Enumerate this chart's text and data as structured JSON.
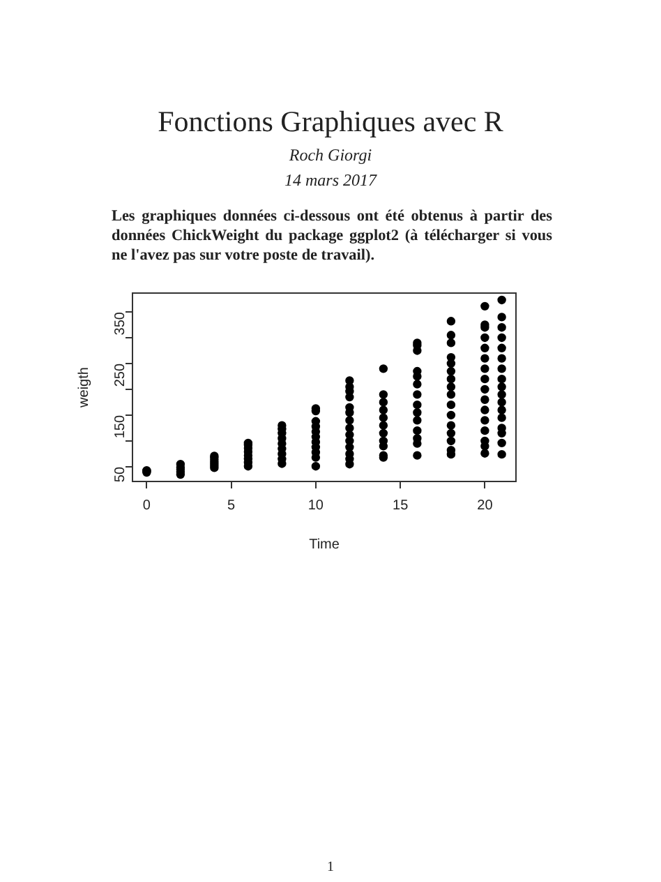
{
  "chart_data": {
    "type": "scatter",
    "title": "Fonctions Graphiques avec R",
    "subtitle": "Roch Giorgi",
    "annotations": [
      "14 mars 2017",
      "Les graphiques données ci-dessous ont été obtenus à partir des données ChickWeight du package ggplot2 (à télécharger si vous ne l'avez pas sur votre poste de travail).",
      "1"
    ],
    "xlabel": "Time",
    "ylabel": "weigth",
    "xlim": [
      -0.84,
      21.84
    ],
    "xticks": [
      0,
      5,
      10,
      15,
      20
    ],
    "ylim": [
      21.5,
      386.5
    ],
    "yticks": [
      50,
      {
        "value": 100,
        "label": null
      },
      150,
      {
        "value": 200,
        "label": null
      },
      250,
      {
        "value": 300,
        "label": null
      },
      350
    ],
    "marker": "circle",
    "grid": false,
    "legend": false,
    "series": [
      {
        "color": "#000000",
        "x": [
          0,
          0,
          0,
          0,
          2,
          2,
          2,
          2,
          2,
          4,
          4,
          4,
          4,
          4,
          4,
          4,
          6,
          6,
          6,
          6,
          6,
          6,
          6,
          6,
          8,
          8,
          8,
          8,
          8,
          8,
          8,
          8,
          8,
          10,
          10,
          10,
          10,
          10,
          10,
          10,
          10,
          10,
          10,
          10,
          12,
          12,
          12,
          12,
          12,
          12,
          12,
          12,
          12,
          12,
          12,
          12,
          12,
          12,
          14,
          14,
          14,
          14,
          14,
          14,
          14,
          14,
          14,
          14,
          14,
          16,
          16,
          16,
          16,
          16,
          16,
          16,
          16,
          16,
          16,
          16,
          16,
          16,
          16,
          18,
          18,
          18,
          18,
          18,
          18,
          18,
          18,
          18,
          18,
          18,
          18,
          18,
          18,
          18,
          18,
          20,
          20,
          20,
          20,
          20,
          20,
          20,
          20,
          20,
          20,
          20,
          20,
          20,
          20,
          20,
          20,
          21,
          21,
          21,
          21,
          21,
          21,
          21,
          21,
          21,
          21,
          21,
          21,
          21,
          21,
          21,
          21,
          21
        ],
        "values": [
          39,
          41,
          42,
          43,
          35,
          40,
          45,
          49,
          55,
          48,
          52,
          56,
          60,
          64,
          68,
          71,
          51,
          58,
          65,
          72,
          79,
          86,
          92,
          96,
          56,
          65,
          75,
          85,
          95,
          105,
          115,
          123,
          130,
          51,
          68,
          78,
          88,
          98,
          108,
          118,
          128,
          138,
          158,
          163,
          55,
          65,
          75,
          88,
          100,
          112,
          125,
          140,
          155,
          165,
          185,
          196,
          205,
          217,
          68,
          72,
          90,
          100,
          115,
          130,
          145,
          160,
          175,
          190,
          240,
          72,
          95,
          105,
          120,
          140,
          155,
          170,
          190,
          210,
          225,
          235,
          275,
          285,
          290,
          74,
          82,
          100,
          115,
          130,
          150,
          170,
          190,
          205,
          220,
          235,
          250,
          262,
          290,
          305,
          332,
          76,
          90,
          100,
          120,
          140,
          160,
          180,
          200,
          220,
          240,
          260,
          280,
          300,
          320,
          325,
          361,
          74,
          96,
          115,
          125,
          145,
          160,
          175,
          190,
          205,
          220,
          240,
          260,
          280,
          300,
          320,
          340,
          373
        ]
      }
    ]
  }
}
